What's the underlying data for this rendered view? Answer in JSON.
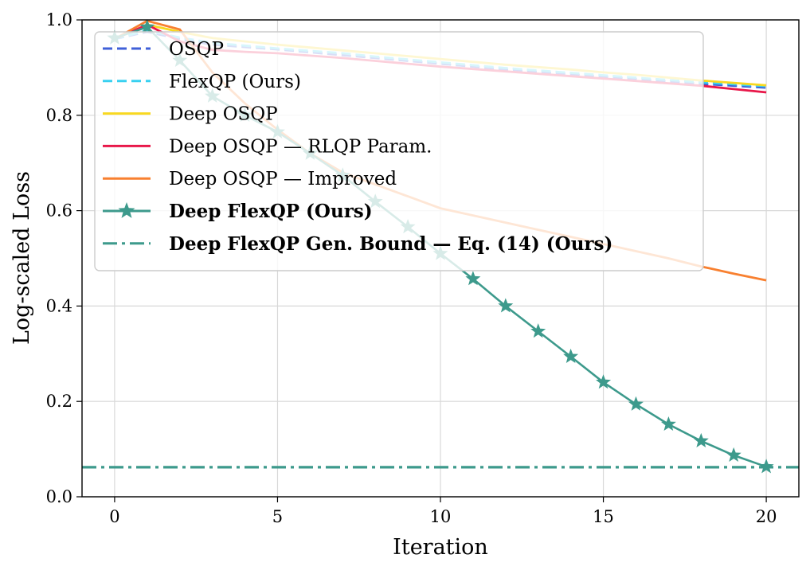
{
  "chart_data": {
    "type": "line",
    "title": "",
    "xlabel": "Iteration",
    "ylabel": "Log-scaled Loss",
    "xlim": [
      -1,
      21
    ],
    "ylim": [
      0,
      1
    ],
    "xticks": [
      "0",
      "5",
      "10",
      "15",
      "20"
    ],
    "yticks": [
      "0.0",
      "0.2",
      "0.4",
      "0.6",
      "0.8",
      "1.0"
    ],
    "grid": true,
    "legend_placement": "top-left",
    "x": [
      0,
      1,
      2,
      3,
      4,
      5,
      6,
      7,
      8,
      9,
      10,
      11,
      12,
      13,
      14,
      15,
      16,
      17,
      18,
      19,
      20
    ],
    "series": [
      {
        "name": "OSQP",
        "style": "dashed",
        "color": "#4060d8",
        "bold": false,
        "values": [
          0.96,
          0.975,
          0.96,
          0.948,
          0.943,
          0.938,
          0.932,
          0.926,
          0.92,
          0.914,
          0.908,
          0.902,
          0.896,
          0.891,
          0.886,
          0.881,
          0.876,
          0.871,
          0.866,
          0.862,
          0.858
        ]
      },
      {
        "name": "FlexQP (Ours)",
        "style": "dashed",
        "color": "#38d0f0",
        "bold": false,
        "values": [
          0.96,
          0.978,
          0.963,
          0.952,
          0.946,
          0.94,
          0.935,
          0.93,
          0.923,
          0.917,
          0.911,
          0.905,
          0.899,
          0.894,
          0.889,
          0.884,
          0.879,
          0.874,
          0.869,
          0.865,
          0.861
        ]
      },
      {
        "name": "Deep OSQP",
        "style": "solid",
        "color": "#f8d820",
        "bold": false,
        "values": [
          0.96,
          0.99,
          0.975,
          0.962,
          0.955,
          0.948,
          0.942,
          0.936,
          0.93,
          0.924,
          0.918,
          0.912,
          0.906,
          0.901,
          0.896,
          0.89,
          0.885,
          0.879,
          0.873,
          0.868,
          0.863
        ]
      },
      {
        "name": "Deep OSQP — RLQP Param.",
        "style": "solid",
        "color": "#e8184a",
        "bold": false,
        "values": [
          0.96,
          0.99,
          0.955,
          0.937,
          0.933,
          0.93,
          0.925,
          0.92,
          0.914,
          0.908,
          0.902,
          0.897,
          0.892,
          0.887,
          0.882,
          0.877,
          0.872,
          0.867,
          0.862,
          0.855,
          0.848
        ]
      },
      {
        "name": "Deep OSQP — Improved",
        "style": "solid",
        "color": "#f88030",
        "bold": false,
        "values": [
          0.96,
          0.998,
          0.98,
          0.89,
          0.825,
          0.77,
          0.72,
          0.68,
          0.655,
          0.63,
          0.605,
          0.59,
          0.575,
          0.56,
          0.545,
          0.53,
          0.515,
          0.5,
          0.483,
          0.468,
          0.454
        ]
      },
      {
        "name": "Deep FlexQP (Ours)",
        "style": "solid-star",
        "color": "#3d9a8c",
        "bold": true,
        "values": [
          0.962,
          0.985,
          0.915,
          0.84,
          0.8,
          0.765,
          0.72,
          0.674,
          0.619,
          0.566,
          0.51,
          0.457,
          0.4,
          0.347,
          0.294,
          0.24,
          0.194,
          0.152,
          0.117,
          0.087,
          0.063
        ]
      },
      {
        "name": "Deep FlexQP Gen. Bound — Eq. (14) (Ours)",
        "style": "dashdot",
        "color": "#3d9a8c",
        "bold": true,
        "hline": 0.062
      }
    ]
  }
}
